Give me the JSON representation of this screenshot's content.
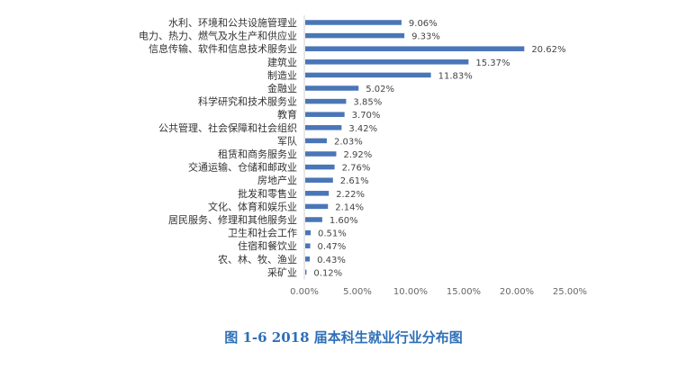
{
  "chart_data": {
    "type": "bar",
    "orientation": "horizontal",
    "title": "图 1-6    2018 届本科生就业行业分布图",
    "categories": [
      "水利、环境和公共设施管理业",
      "电力、热力、燃气及水生产和供应业",
      "信息传输、软件和信息技术服务业",
      "建筑业",
      "制造业",
      "金融业",
      "科学研究和技术服务业",
      "教育",
      "公共管理、社会保障和社会组织",
      "军队",
      "租赁和商务服务业",
      "交通运输、仓储和邮政业",
      "房地产业",
      "批发和零售业",
      "文化、体育和娱乐业",
      "居民服务、修理和其他服务业",
      "卫生和社会工作",
      "住宿和餐饮业",
      "农、林、牧、渔业",
      "采矿业"
    ],
    "values": [
      9.06,
      9.33,
      20.62,
      15.37,
      11.83,
      5.02,
      3.85,
      3.7,
      3.42,
      2.03,
      2.92,
      2.76,
      2.61,
      2.22,
      2.14,
      1.6,
      0.51,
      0.47,
      0.43,
      0.12
    ],
    "value_labels": [
      "9.06%",
      "9.33%",
      "20.62%",
      "15.37%",
      "11.83%",
      "5.02%",
      "3.85%",
      "3.70%",
      "3.42%",
      "2.03%",
      "2.92%",
      "2.76%",
      "2.61%",
      "2.22%",
      "2.14%",
      "1.60%",
      "0.51%",
      "0.47%",
      "0.43%",
      "0.12%"
    ],
    "xlim": [
      0,
      25
    ],
    "xticks": [
      0,
      5,
      10,
      15,
      20,
      25
    ],
    "xtick_labels": [
      "0.00%",
      "5.00%",
      "10.00%",
      "15.00%",
      "20.00%",
      "25.00%"
    ],
    "grid": false,
    "legend": "none",
    "bar_color": "#4a76b8",
    "caption_color": "#2e6fb7"
  }
}
